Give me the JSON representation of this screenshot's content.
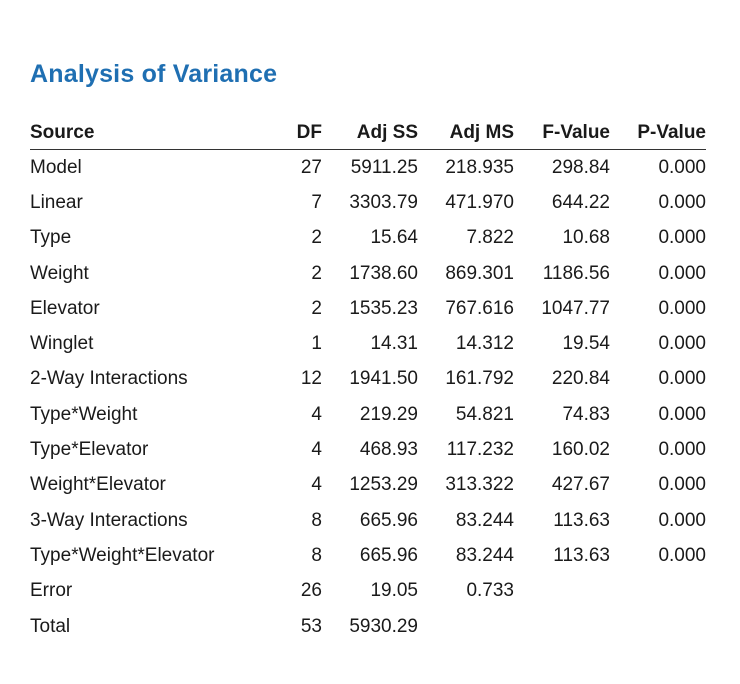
{
  "title": "Analysis of Variance",
  "headers": {
    "source": "Source",
    "df": "DF",
    "adj_ss": "Adj SS",
    "adj_ms": "Adj MS",
    "f_value": "F-Value",
    "p_value": "P-Value"
  },
  "rows": [
    {
      "source": "Model",
      "df": "27",
      "adj_ss": "5911.25",
      "adj_ms": "218.935",
      "f_value": "298.84",
      "p_value": "0.000"
    },
    {
      "source": "Linear",
      "df": "7",
      "adj_ss": "3303.79",
      "adj_ms": "471.970",
      "f_value": "644.22",
      "p_value": "0.000"
    },
    {
      "source": "Type",
      "df": "2",
      "adj_ss": "15.64",
      "adj_ms": "7.822",
      "f_value": "10.68",
      "p_value": "0.000"
    },
    {
      "source": "Weight",
      "df": "2",
      "adj_ss": "1738.60",
      "adj_ms": "869.301",
      "f_value": "1186.56",
      "p_value": "0.000"
    },
    {
      "source": "Elevator",
      "df": "2",
      "adj_ss": "1535.23",
      "adj_ms": "767.616",
      "f_value": "1047.77",
      "p_value": "0.000"
    },
    {
      "source": "Winglet",
      "df": "1",
      "adj_ss": "14.31",
      "adj_ms": "14.312",
      "f_value": "19.54",
      "p_value": "0.000"
    },
    {
      "source": "2-Way Interactions",
      "df": "12",
      "adj_ss": "1941.50",
      "adj_ms": "161.792",
      "f_value": "220.84",
      "p_value": "0.000"
    },
    {
      "source": "Type*Weight",
      "df": "4",
      "adj_ss": "219.29",
      "adj_ms": "54.821",
      "f_value": "74.83",
      "p_value": "0.000"
    },
    {
      "source": "Type*Elevator",
      "df": "4",
      "adj_ss": "468.93",
      "adj_ms": "117.232",
      "f_value": "160.02",
      "p_value": "0.000"
    },
    {
      "source": "Weight*Elevator",
      "df": "4",
      "adj_ss": "1253.29",
      "adj_ms": "313.322",
      "f_value": "427.67",
      "p_value": "0.000"
    },
    {
      "source": "3-Way Interactions",
      "df": "8",
      "adj_ss": "665.96",
      "adj_ms": "83.244",
      "f_value": "113.63",
      "p_value": "0.000"
    },
    {
      "source": "Type*Weight*Elevator",
      "df": "8",
      "adj_ss": "665.96",
      "adj_ms": "83.244",
      "f_value": "113.63",
      "p_value": "0.000"
    },
    {
      "source": "Error",
      "df": "26",
      "adj_ss": "19.05",
      "adj_ms": "0.733",
      "f_value": "",
      "p_value": ""
    },
    {
      "source": "Total",
      "df": "53",
      "adj_ss": "5930.29",
      "adj_ms": "",
      "f_value": "",
      "p_value": ""
    }
  ]
}
